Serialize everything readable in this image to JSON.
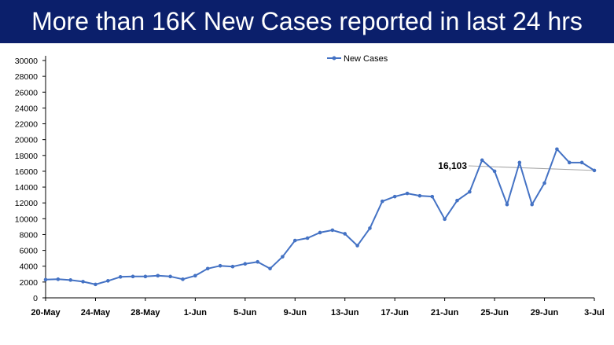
{
  "chart_data": {
    "type": "line",
    "title": "More than 16K New Cases reported in last 24 hrs",
    "xlabel": "",
    "ylabel": "",
    "ylim": [
      0,
      30000
    ],
    "y_ticks": [
      0,
      2000,
      4000,
      6000,
      8000,
      10000,
      12000,
      14000,
      16000,
      18000,
      20000,
      22000,
      24000,
      26000,
      28000,
      30000
    ],
    "x": [
      "20-May",
      "21-May",
      "22-May",
      "23-May",
      "24-May",
      "25-May",
      "26-May",
      "27-May",
      "28-May",
      "29-May",
      "30-May",
      "31-May",
      "1-Jun",
      "2-Jun",
      "3-Jun",
      "4-Jun",
      "5-Jun",
      "6-Jun",
      "7-Jun",
      "8-Jun",
      "9-Jun",
      "10-Jun",
      "11-Jun",
      "12-Jun",
      "13-Jun",
      "14-Jun",
      "15-Jun",
      "16-Jun",
      "17-Jun",
      "18-Jun",
      "19-Jun",
      "20-Jun",
      "21-Jun",
      "22-Jun",
      "23-Jun",
      "24-Jun",
      "25-Jun",
      "26-Jun",
      "27-Jun",
      "28-Jun",
      "29-Jun",
      "30-Jun",
      "1-Jul",
      "2-Jul",
      "3-Jul"
    ],
    "x_tick_labels": [
      "20-May",
      "24-May",
      "28-May",
      "1-Jun",
      "5-Jun",
      "9-Jun",
      "13-Jun",
      "17-Jun",
      "21-Jun",
      "25-Jun",
      "29-Jun",
      "3-Jul"
    ],
    "series": [
      {
        "name": "New Cases",
        "color": "#4472c4",
        "values": [
          2300,
          2350,
          2250,
          2050,
          1700,
          2150,
          2650,
          2700,
          2700,
          2800,
          2700,
          2350,
          2800,
          3700,
          4050,
          3950,
          4300,
          4550,
          3700,
          5200,
          7250,
          7550,
          8250,
          8550,
          8100,
          6600,
          8800,
          12200,
          12800,
          13200,
          12900,
          12800,
          9950,
          12300,
          13400,
          17400,
          16000,
          11800,
          17100,
          11800,
          14500,
          18800,
          17100,
          17100,
          16103
        ]
      }
    ],
    "legend": "top-center",
    "annotations": [
      {
        "label": "16,103",
        "at": "3-Jul"
      }
    ]
  }
}
